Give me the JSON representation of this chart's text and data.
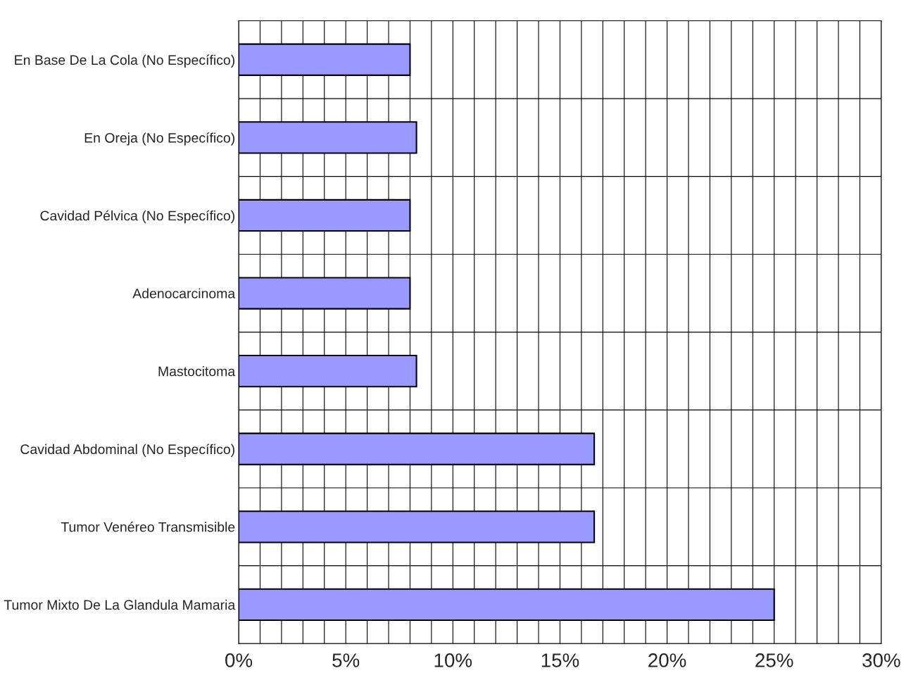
{
  "chart_data": {
    "type": "bar",
    "orientation": "horizontal",
    "categories": [
      "En Base De La Cola (No Específico)",
      "En Oreja (No Específico)",
      "Cavidad Pélvica (No Específico)",
      "Adenocarcinoma",
      "Mastocitoma",
      "Cavidad Abdominal (No Específico)",
      "Tumor Venéreo Transmisible",
      "Tumor Mixto De La Glandula Mamaria"
    ],
    "values": [
      8.0,
      8.3,
      8.0,
      8.0,
      8.3,
      16.6,
      16.6,
      25.0
    ],
    "color": "#9999ff",
    "xlim": [
      0,
      30
    ],
    "xticks": [
      {
        "value": 0,
        "label": "0%"
      },
      {
        "value": 1,
        "label": null
      },
      {
        "value": 2,
        "label": null
      },
      {
        "value": 3,
        "label": null
      },
      {
        "value": 4,
        "label": null
      },
      {
        "value": 5,
        "label": "5%"
      },
      {
        "value": 6,
        "label": null
      },
      {
        "value": 7,
        "label": null
      },
      {
        "value": 8,
        "label": null
      },
      {
        "value": 9,
        "label": null
      },
      {
        "value": 10,
        "label": "10%"
      },
      {
        "value": 11,
        "label": null
      },
      {
        "value": 12,
        "label": null
      },
      {
        "value": 13,
        "label": null
      },
      {
        "value": 14,
        "label": null
      },
      {
        "value": 15,
        "label": "15%"
      },
      {
        "value": 16,
        "label": null
      },
      {
        "value": 17,
        "label": null
      },
      {
        "value": 18,
        "label": null
      },
      {
        "value": 19,
        "label": null
      },
      {
        "value": 20,
        "label": "20%"
      },
      {
        "value": 21,
        "label": null
      },
      {
        "value": 22,
        "label": null
      },
      {
        "value": 23,
        "label": null
      },
      {
        "value": 24,
        "label": null
      },
      {
        "value": 25,
        "label": "25%"
      },
      {
        "value": 26,
        "label": null
      },
      {
        "value": 27,
        "label": null
      },
      {
        "value": 28,
        "label": null
      },
      {
        "value": 29,
        "label": null
      },
      {
        "value": 30,
        "label": "30%"
      }
    ],
    "grid": true
  }
}
